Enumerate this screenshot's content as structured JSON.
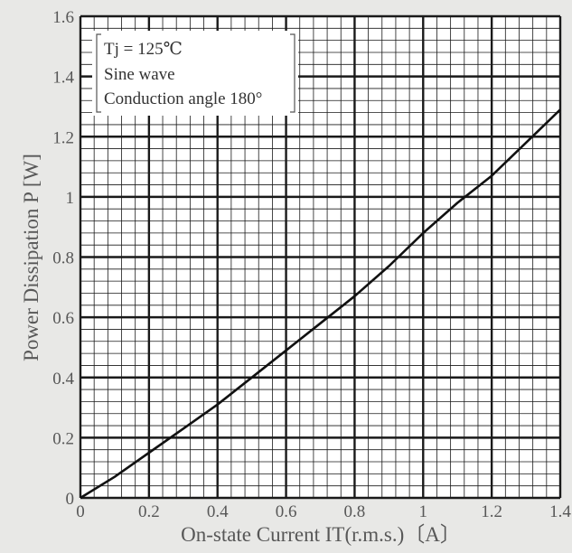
{
  "colors": {
    "background": "#e8e8e6",
    "plot_background": "#ffffff",
    "grid": "#1a1a1a",
    "curve": "#111111",
    "text": "#575757"
  },
  "chart_data": {
    "type": "line",
    "title": "",
    "xlabel": "On-state Current  IT(r.m.s.)〔A〕",
    "ylabel": "Power Dissipation  P  [W]",
    "xlim": [
      0,
      1.4
    ],
    "ylim": [
      0,
      1.6
    ],
    "grid": true,
    "x_ticks": [
      0,
      0.2,
      0.4,
      0.6,
      0.8,
      1,
      1.2,
      1.4
    ],
    "x_tick_labels": [
      "0",
      "0.2",
      "0.4",
      "0.6",
      "0.8",
      "1",
      "1.2",
      "1.4"
    ],
    "y_ticks": [
      0,
      0.2,
      0.4,
      0.6,
      0.8,
      1,
      1.2,
      1.4,
      1.6
    ],
    "y_tick_labels": [
      "0",
      "0.2",
      "0.4",
      "0.6",
      "0.8",
      "1",
      "1.2",
      "1.4",
      "1.6"
    ],
    "annotation_lines": [
      "Tj = 125℃",
      "Sine wave",
      "Conduction angle 180°"
    ],
    "annotation_placement": "top-left",
    "series": [
      {
        "x": [
          0,
          0.1,
          0.2,
          0.3,
          0.4,
          0.5,
          0.6,
          0.7,
          0.8,
          0.9,
          1.0,
          1.1,
          1.2,
          1.3,
          1.4
        ],
        "y": [
          0,
          0.07,
          0.15,
          0.23,
          0.31,
          0.4,
          0.49,
          0.58,
          0.67,
          0.77,
          0.88,
          0.98,
          1.07,
          1.18,
          1.29
        ]
      }
    ]
  }
}
